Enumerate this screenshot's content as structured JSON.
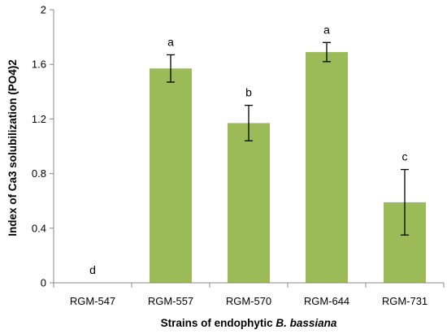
{
  "chart_data": {
    "type": "bar",
    "categories": [
      "RGM-547",
      "RGM-557",
      "RGM-570",
      "RGM-644",
      "RGM-731"
    ],
    "values": [
      0,
      1.57,
      1.17,
      1.69,
      0.59
    ],
    "errors": [
      0,
      0.1,
      0.13,
      0.07,
      0.24
    ],
    "significance_letters": [
      "d",
      "a",
      "b",
      "a",
      "c"
    ],
    "xlabel_prefix": "Strains of endophytic ",
    "xlabel_italic": "B. bassiana",
    "ylabel": "Index of Ca3 solubilization (PO4)2",
    "ylim": [
      0,
      2
    ],
    "yticks": [
      0,
      0.4,
      0.8,
      1.2,
      1.6,
      2
    ],
    "ytick_labels": [
      "0",
      "0.4",
      "0.8",
      "1.2",
      "1.6",
      "2"
    ],
    "grid": false,
    "legend": "none",
    "colors": {
      "bar": "#9BBB59",
      "axis": "#888888",
      "error_bar": "#000000"
    }
  }
}
